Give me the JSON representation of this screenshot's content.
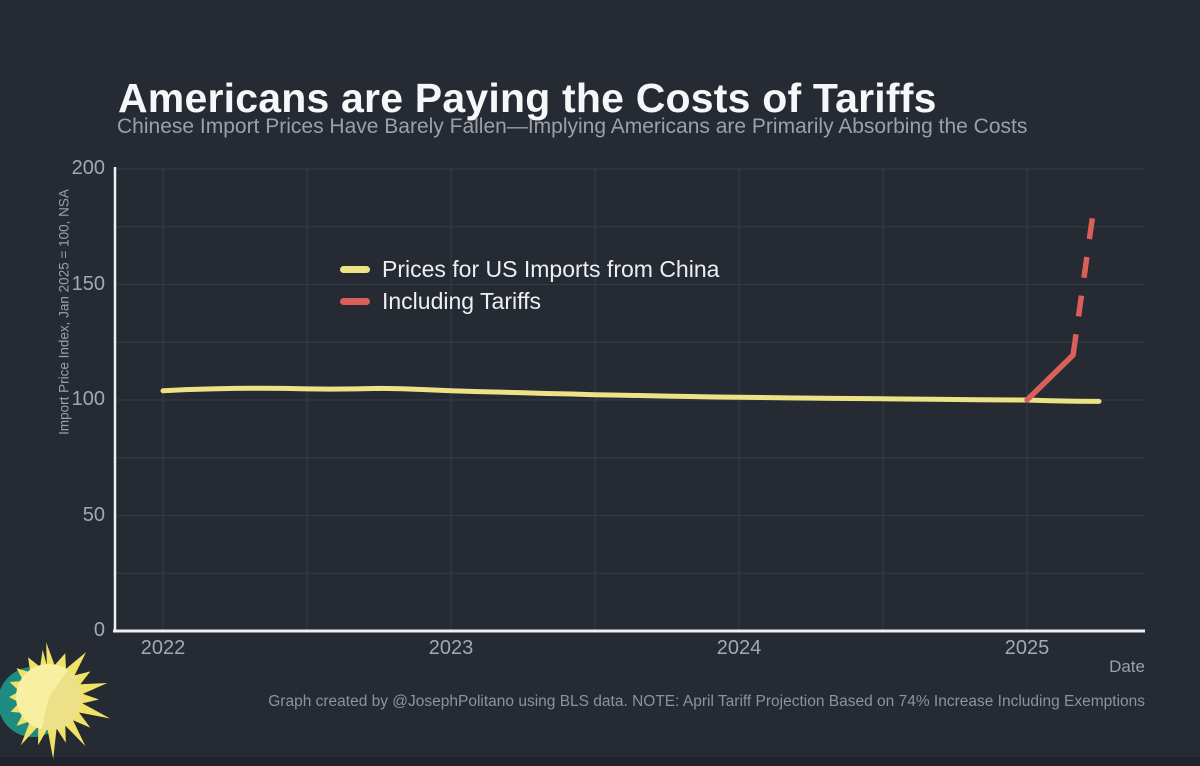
{
  "header": {
    "title": "Americans are Paying the Costs of Tariffs",
    "subtitle": "Chinese Import Prices Have Barely Fallen—Implying Americans are Primarily Absorbing the Costs"
  },
  "footer": {
    "note": "Graph created by @JosephPolitano using BLS data. NOTE: April Tariff Projection Based on 74% Increase Including Exemptions"
  },
  "colors": {
    "background": "#252a33",
    "grid": "#343b45",
    "axis": "#eef1f4",
    "title_text": "#f6f7f8",
    "subtitle_text": "#9aa1a9",
    "tick_text": "#a3a9b1",
    "muted_text": "#8d939c",
    "bottom_strip": "#1e232b"
  },
  "logo": {
    "name": "sun-logo",
    "colors": {
      "teal": "#1f8c82",
      "ray_yellow": "#f0e266",
      "disc_yellow": "#f8f0a0",
      "wedge_yellow": "#eee089"
    }
  },
  "chart_data": {
    "type": "line",
    "title": "Americans are Paying the Costs of Tariffs",
    "subtitle": "Chinese Import Prices Have Barely Fallen—Implying Americans are Primarily Absorbing the Costs",
    "xlabel": "Date",
    "ylabel": "Import Price Index, Jan 2025 = 100, NSA",
    "x_domain": [
      2021.833,
      2025.41
    ],
    "ylim": [
      0,
      200
    ],
    "y_ticks": [
      0,
      50,
      100,
      150,
      200
    ],
    "x_ticks": [
      2022,
      2023,
      2024,
      2025
    ],
    "grid": {
      "x_interval": 0.5,
      "y_interval": 25,
      "on": true
    },
    "legend_position": "upper-left-inside",
    "series": [
      {
        "name": "Prices for US Imports from China",
        "color": "#ede385",
        "style": "solid",
        "points": [
          [
            2022.0,
            104.0
          ],
          [
            2022.08,
            104.5
          ],
          [
            2022.17,
            104.8
          ],
          [
            2022.25,
            105.0
          ],
          [
            2022.33,
            105.1
          ],
          [
            2022.42,
            105.0
          ],
          [
            2022.5,
            104.8
          ],
          [
            2022.58,
            104.7
          ],
          [
            2022.67,
            104.8
          ],
          [
            2022.75,
            105.0
          ],
          [
            2022.83,
            104.9
          ],
          [
            2022.92,
            104.4
          ],
          [
            2023.0,
            104.0
          ],
          [
            2023.08,
            103.7
          ],
          [
            2023.17,
            103.4
          ],
          [
            2023.25,
            103.1
          ],
          [
            2023.33,
            102.8
          ],
          [
            2023.42,
            102.6
          ],
          [
            2023.5,
            102.3
          ],
          [
            2023.58,
            102.1
          ],
          [
            2023.67,
            101.9
          ],
          [
            2023.75,
            101.7
          ],
          [
            2023.83,
            101.5
          ],
          [
            2023.92,
            101.3
          ],
          [
            2024.0,
            101.2
          ],
          [
            2024.17,
            100.9
          ],
          [
            2024.33,
            100.7
          ],
          [
            2024.5,
            100.5
          ],
          [
            2024.67,
            100.3
          ],
          [
            2024.83,
            100.1
          ],
          [
            2025.0,
            100.0
          ],
          [
            2025.08,
            99.7
          ],
          [
            2025.17,
            99.5
          ],
          [
            2025.25,
            99.4
          ]
        ]
      },
      {
        "name": "Including Tariffs",
        "color": "#d95f5a",
        "style": "solid-then-dashed",
        "solid_points": [
          [
            2025.0,
            100.0
          ],
          [
            2025.16,
            119.5
          ]
        ],
        "dashed_points": [
          [
            2025.16,
            119.5
          ],
          [
            2025.235,
            186.0
          ]
        ]
      }
    ]
  }
}
